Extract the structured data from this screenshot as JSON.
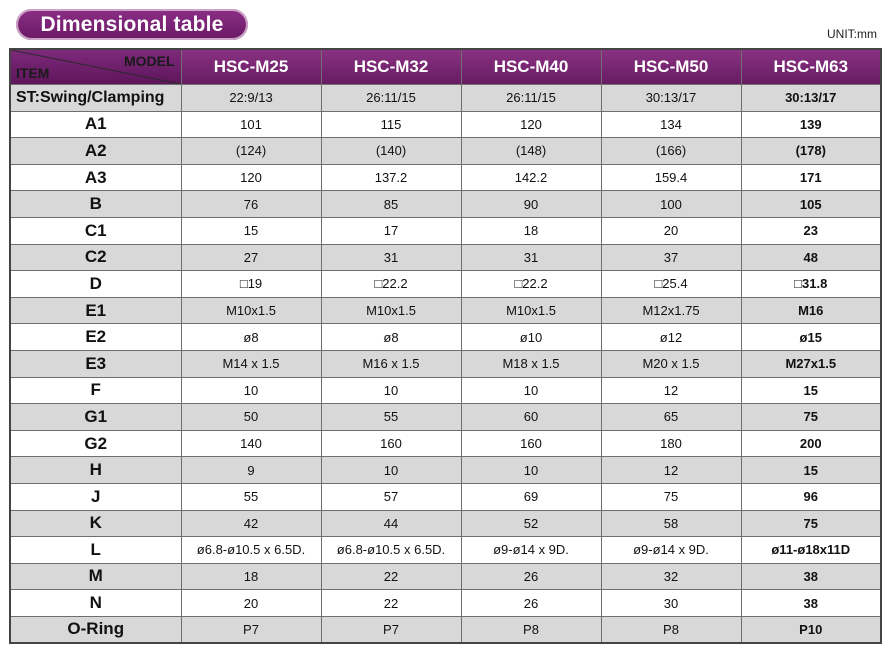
{
  "title": "Dimensional table",
  "unit": "UNIT:mm",
  "header": {
    "model_label": "MODEL",
    "item_label": "ITEM",
    "models": [
      "HSC-M25",
      "HSC-M32",
      "HSC-M40",
      "HSC-M50",
      "HSC-M63"
    ]
  },
  "rows": [
    {
      "item": "ST:Swing/Clamping",
      "values": [
        "22:9/13",
        "26:11/15",
        "26:11/15",
        "30:13/17",
        "30:13/17"
      ]
    },
    {
      "item": "A1",
      "values": [
        "101",
        "115",
        "120",
        "134",
        "139"
      ]
    },
    {
      "item": "A2",
      "values": [
        "(124)",
        "(140)",
        "(148)",
        "(166)",
        "(178)"
      ]
    },
    {
      "item": "A3",
      "values": [
        "120",
        "137.2",
        "142.2",
        "159.4",
        "171"
      ]
    },
    {
      "item": "B",
      "values": [
        "76",
        "85",
        "90",
        "100",
        "105"
      ]
    },
    {
      "item": "C1",
      "values": [
        "15",
        "17",
        "18",
        "20",
        "23"
      ]
    },
    {
      "item": "C2",
      "values": [
        "27",
        "31",
        "31",
        "37",
        "48"
      ]
    },
    {
      "item": "D",
      "values": [
        "□19",
        "□22.2",
        "□22.2",
        "□25.4",
        "□31.8"
      ]
    },
    {
      "item": "E1",
      "values": [
        "M10x1.5",
        "M10x1.5",
        "M10x1.5",
        "M12x1.75",
        "M16"
      ]
    },
    {
      "item": "E2",
      "values": [
        "ø8",
        "ø8",
        "ø10",
        "ø12",
        "ø15"
      ]
    },
    {
      "item": "E3",
      "values": [
        "M14 x 1.5",
        "M16 x 1.5",
        "M18 x 1.5",
        "M20 x 1.5",
        "M27x1.5"
      ]
    },
    {
      "item": "F",
      "values": [
        "10",
        "10",
        "10",
        "12",
        "15"
      ]
    },
    {
      "item": "G1",
      "values": [
        "50",
        "55",
        "60",
        "65",
        "75"
      ]
    },
    {
      "item": "G2",
      "values": [
        "140",
        "160",
        "160",
        "180",
        "200"
      ]
    },
    {
      "item": "H",
      "values": [
        "9",
        "10",
        "10",
        "12",
        "15"
      ]
    },
    {
      "item": "J",
      "values": [
        "55",
        "57",
        "69",
        "75",
        "96"
      ]
    },
    {
      "item": "K",
      "values": [
        "42",
        "44",
        "52",
        "58",
        "75"
      ]
    },
    {
      "item": "L",
      "values": [
        "ø6.8-ø10.5 x 6.5D.",
        "ø6.8-ø10.5 x 6.5D.",
        "ø9-ø14 x 9D.",
        "ø9-ø14 x 9D.",
        "ø11-ø18x11D"
      ]
    },
    {
      "item": "M",
      "values": [
        "18",
        "22",
        "26",
        "32",
        "38"
      ]
    },
    {
      "item": "N",
      "values": [
        "20",
        "22",
        "26",
        "30",
        "38"
      ]
    },
    {
      "item": "O-Ring",
      "values": [
        "P7",
        "P7",
        "P8",
        "P8",
        "P10"
      ]
    }
  ],
  "colors": {
    "header_purple": "#7a2776",
    "row_gray": "#d8d8d8"
  }
}
